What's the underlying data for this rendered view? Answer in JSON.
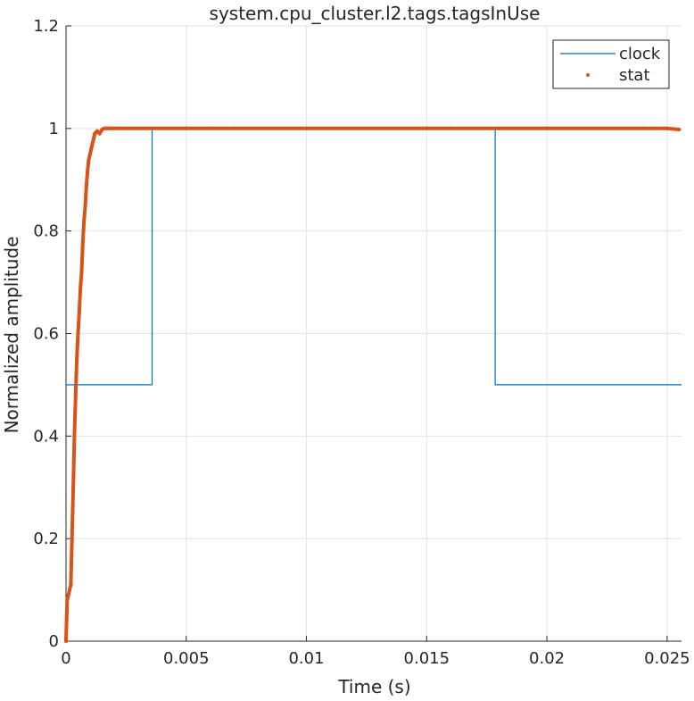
{
  "chart_data": {
    "type": "line",
    "title": "system.cpu_cluster.l2.tags.tagsInUse",
    "xlabel": "Time (s)",
    "ylabel": "Normalized amplitude",
    "xlim": [
      0,
      0.0256
    ],
    "ylim": [
      0,
      1.2
    ],
    "xticks": [
      0,
      0.005,
      0.01,
      0.015,
      0.02,
      0.025
    ],
    "xtick_labels": [
      "0",
      "0.005",
      "0.01",
      "0.015",
      "0.02",
      "0.025"
    ],
    "yticks": [
      0,
      0.2,
      0.4,
      0.6,
      0.8,
      1.0,
      1.2
    ],
    "ytick_labels": [
      "0",
      "0.2",
      "0.4",
      "0.6",
      "0.8",
      "1",
      "1.2"
    ],
    "grid": true,
    "legend_position": "top-right",
    "series": [
      {
        "name": "clock",
        "style": "line",
        "color": "#0072BD",
        "x": [
          0,
          0.00358,
          0.00358,
          0.01785,
          0.01785,
          0.0256
        ],
        "y": [
          0.5,
          0.5,
          1.0,
          1.0,
          0.5,
          0.5
        ]
      },
      {
        "name": "stat",
        "style": "markers",
        "color": "#D95319",
        "x": [
          0,
          5e-05,
          0.0001,
          0.00015,
          0.0002,
          0.00025,
          0.0003,
          0.00035,
          0.0004,
          0.00045,
          0.0005,
          0.00055,
          0.0006,
          0.00065,
          0.0007,
          0.00075,
          0.0008,
          0.00085,
          0.0009,
          0.00095,
          0.001,
          0.00105,
          0.0011,
          0.00115,
          0.0012,
          0.0013,
          0.0014,
          0.0015,
          0.0016,
          0.0017,
          0.0018,
          0.0019,
          0.002,
          0.0022,
          0.0025,
          0.003,
          0.004,
          0.005,
          0.006,
          0.007,
          0.008,
          0.009,
          0.01,
          0.011,
          0.012,
          0.013,
          0.014,
          0.015,
          0.016,
          0.017,
          0.018,
          0.019,
          0.02,
          0.021,
          0.022,
          0.023,
          0.024,
          0.025,
          0.0255
        ],
        "y": [
          0.0,
          0.08,
          0.09,
          0.1,
          0.11,
          0.2,
          0.3,
          0.4,
          0.48,
          0.55,
          0.6,
          0.64,
          0.69,
          0.72,
          0.78,
          0.82,
          0.85,
          0.89,
          0.92,
          0.94,
          0.95,
          0.96,
          0.97,
          0.98,
          0.99,
          0.995,
          0.99,
          0.998,
          1.0,
          1.0,
          1.0,
          1.0,
          1.0,
          1.0,
          1.0,
          1.0,
          1.0,
          1.0,
          1.0,
          1.0,
          1.0,
          1.0,
          1.0,
          1.0,
          1.0,
          1.0,
          1.0,
          1.0,
          1.0,
          1.0,
          1.0,
          1.0,
          1.0,
          1.0,
          1.0,
          1.0,
          1.0,
          1.0,
          0.998
        ]
      }
    ]
  }
}
